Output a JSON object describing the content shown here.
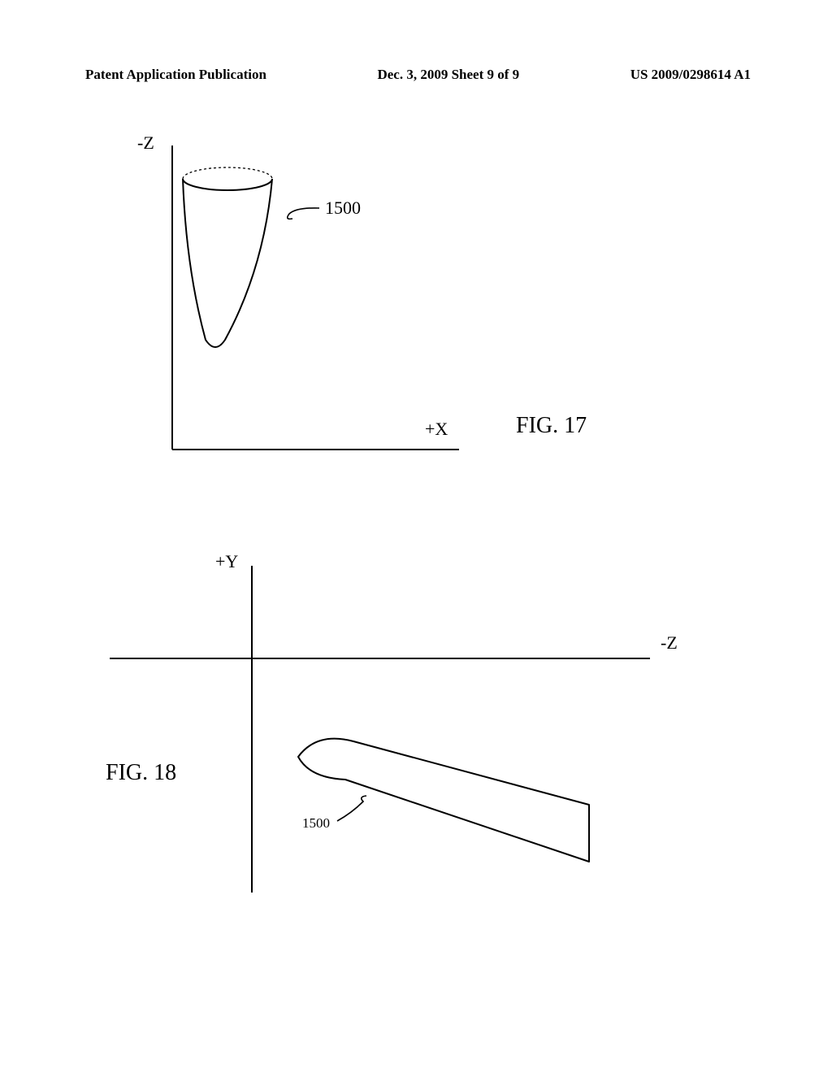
{
  "header": {
    "left": "Patent Application Publication",
    "center": "Dec. 3, 2009   Sheet 9 of 9",
    "right": "US 2009/0298614 A1"
  },
  "fig17": {
    "yAxisLabel": "-Z",
    "xAxisLabel": "+X",
    "figLabel": "FIG. 17",
    "refNum": "1500",
    "stroke": "#000000",
    "strokeWidth": 2,
    "axes": {
      "yTop": 14,
      "yBottom": 388,
      "xLeft": 17,
      "xRight": 370
    },
    "shape": {
      "leftX": 30,
      "rightX": 140,
      "topY": 55,
      "bottomY": 265,
      "ellipseRy": 14
    },
    "leader": {
      "startX": 155,
      "startY": 102,
      "endX": 198,
      "endY": 91
    }
  },
  "fig18": {
    "yAxisLabel": "+Y",
    "xAxisLabel": "-Z",
    "figLabel": "FIG. 18",
    "refNum": "1500",
    "stroke": "#000000",
    "strokeWidth": 2,
    "axes": {
      "vX": 175,
      "vTop": 16,
      "vBottom": 418,
      "hY": 130,
      "hLeft": 0,
      "hRight": 665
    },
    "shape": {
      "noseX": 260,
      "noseTopY": 228,
      "noseBottomY": 275,
      "tailX": 590,
      "tailTopY": 310,
      "tailBottomY": 380,
      "tipX": 232,
      "tipY": 251
    },
    "leader": {
      "startX": 310,
      "startY": 302,
      "endX": 280,
      "endY": 330
    }
  }
}
